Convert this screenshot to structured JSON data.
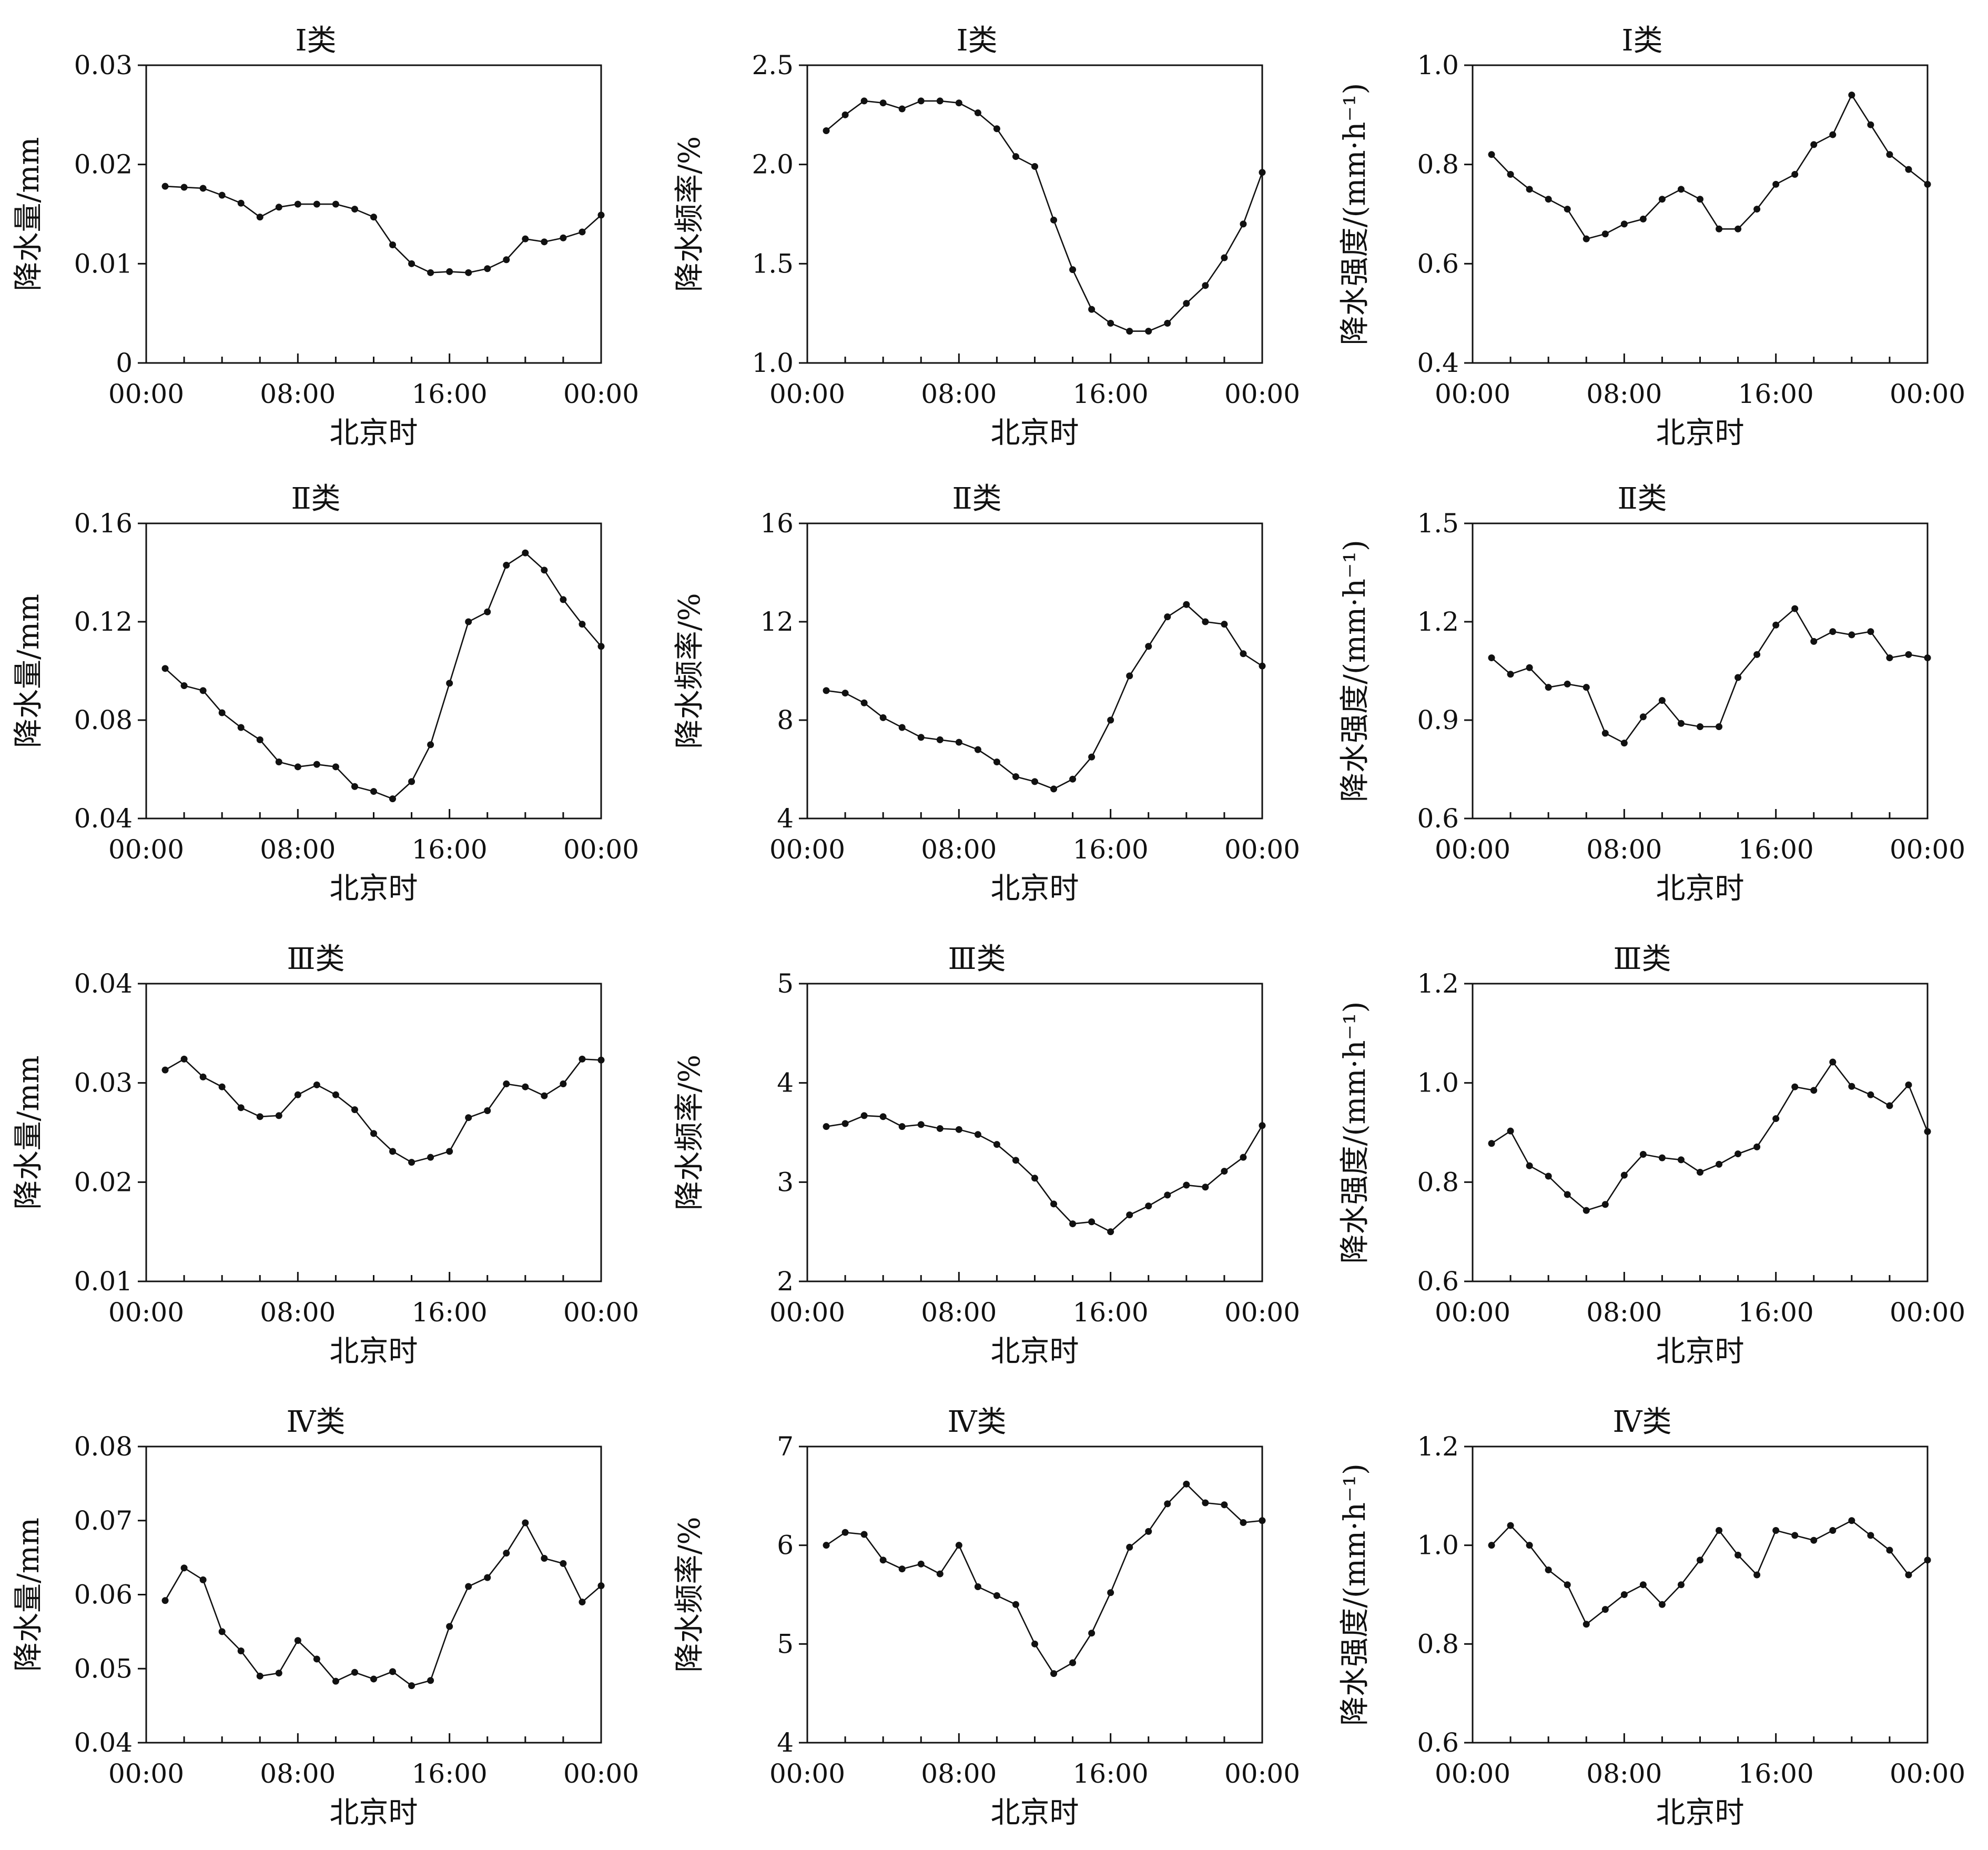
{
  "figure": {
    "x_tick_labels": [
      "00:00",
      "08:00",
      "16:00",
      "00:00"
    ],
    "xlabel": "北京时"
  },
  "chart_data": [
    {
      "type": "line",
      "title": "Ⅰ类",
      "ylabel": "降水量/mm",
      "ylim": [
        0,
        0.03
      ],
      "yticks": [
        "0",
        "0.01",
        "0.02",
        "0.03"
      ],
      "xlim": [
        0,
        24
      ],
      "x": [
        1,
        2,
        3,
        4,
        5,
        6,
        7,
        8,
        9,
        10,
        11,
        12,
        13,
        14,
        15,
        16,
        17,
        18,
        19,
        20,
        21,
        22,
        23,
        24
      ],
      "series": [
        {
          "values": [
            0.0178,
            0.0177,
            0.0176,
            0.0169,
            0.0161,
            0.0147,
            0.0157,
            0.016,
            0.016,
            0.016,
            0.0155,
            0.0147,
            0.0119,
            0.01,
            0.0091,
            0.0092,
            0.0091,
            0.0095,
            0.0104,
            0.0125,
            0.0122,
            0.0126,
            0.0132,
            0.0149
          ]
        }
      ]
    },
    {
      "type": "line",
      "title": "Ⅰ类",
      "ylabel": "降水频率/%",
      "ylim": [
        1.0,
        2.5
      ],
      "yticks": [
        "1.0",
        "1.5",
        "2.0",
        "2.5"
      ],
      "xlim": [
        0,
        24
      ],
      "x": [
        1,
        2,
        3,
        4,
        5,
        6,
        7,
        8,
        9,
        10,
        11,
        12,
        13,
        14,
        15,
        16,
        17,
        18,
        19,
        20,
        21,
        22,
        23,
        24
      ],
      "series": [
        {
          "values": [
            2.17,
            2.25,
            2.32,
            2.31,
            2.28,
            2.32,
            2.32,
            2.31,
            2.26,
            2.18,
            2.04,
            1.99,
            1.72,
            1.47,
            1.27,
            1.2,
            1.16,
            1.16,
            1.2,
            1.3,
            1.39,
            1.53,
            1.7,
            1.96
          ]
        }
      ]
    },
    {
      "type": "line",
      "title": "Ⅰ类",
      "ylabel": "降水强度/(mm·h⁻¹)",
      "ylim": [
        0.4,
        1.0
      ],
      "yticks": [
        "0.4",
        "0.6",
        "0.8",
        "1.0"
      ],
      "xlim": [
        0,
        24
      ],
      "x": [
        1,
        2,
        3,
        4,
        5,
        6,
        7,
        8,
        9,
        10,
        11,
        12,
        13,
        14,
        15,
        16,
        17,
        18,
        19,
        20,
        21,
        22,
        23,
        24
      ],
      "series": [
        {
          "values": [
            0.82,
            0.78,
            0.75,
            0.73,
            0.71,
            0.65,
            0.66,
            0.68,
            0.69,
            0.73,
            0.75,
            0.73,
            0.67,
            0.67,
            0.71,
            0.76,
            0.78,
            0.84,
            0.86,
            0.94,
            0.88,
            0.82,
            0.79,
            0.76
          ]
        }
      ]
    },
    {
      "type": "line",
      "title": "Ⅱ类",
      "ylabel": "降水量/mm",
      "ylim": [
        0.04,
        0.16
      ],
      "yticks": [
        "0.04",
        "0.08",
        "0.12",
        "0.16"
      ],
      "xlim": [
        0,
        24
      ],
      "x": [
        1,
        2,
        3,
        4,
        5,
        6,
        7,
        8,
        9,
        10,
        11,
        12,
        13,
        14,
        15,
        16,
        17,
        18,
        19,
        20,
        21,
        22,
        23,
        24
      ],
      "series": [
        {
          "values": [
            0.101,
            0.094,
            0.092,
            0.083,
            0.077,
            0.072,
            0.063,
            0.061,
            0.062,
            0.061,
            0.053,
            0.051,
            0.048,
            0.055,
            0.07,
            0.095,
            0.12,
            0.124,
            0.143,
            0.148,
            0.141,
            0.129,
            0.119,
            0.11
          ]
        }
      ]
    },
    {
      "type": "line",
      "title": "Ⅱ类",
      "ylabel": "降水频率/%",
      "ylim": [
        4,
        16
      ],
      "yticks": [
        "4",
        "8",
        "12",
        "16"
      ],
      "xlim": [
        0,
        24
      ],
      "x": [
        1,
        2,
        3,
        4,
        5,
        6,
        7,
        8,
        9,
        10,
        11,
        12,
        13,
        14,
        15,
        16,
        17,
        18,
        19,
        20,
        21,
        22,
        23,
        24
      ],
      "series": [
        {
          "values": [
            9.2,
            9.1,
            8.7,
            8.1,
            7.7,
            7.3,
            7.2,
            7.1,
            6.8,
            6.3,
            5.7,
            5.5,
            5.2,
            5.6,
            6.5,
            8.0,
            9.8,
            11.0,
            12.2,
            12.7,
            12.0,
            11.9,
            10.7,
            10.2
          ]
        }
      ]
    },
    {
      "type": "line",
      "title": "Ⅱ类",
      "ylabel": "降水强度/(mm·h⁻¹)",
      "ylim": [
        0.6,
        1.5
      ],
      "yticks": [
        "0.6",
        "0.9",
        "1.2",
        "1.5"
      ],
      "xlim": [
        0,
        24
      ],
      "x": [
        1,
        2,
        3,
        4,
        5,
        6,
        7,
        8,
        9,
        10,
        11,
        12,
        13,
        14,
        15,
        16,
        17,
        18,
        19,
        20,
        21,
        22,
        23,
        24
      ],
      "series": [
        {
          "values": [
            1.09,
            1.04,
            1.06,
            1.0,
            1.01,
            1.0,
            0.86,
            0.83,
            0.91,
            0.96,
            0.89,
            0.88,
            0.88,
            1.03,
            1.1,
            1.19,
            1.24,
            1.14,
            1.17,
            1.16,
            1.17,
            1.09,
            1.1,
            1.09
          ]
        }
      ]
    },
    {
      "type": "line",
      "title": "Ⅲ类",
      "ylabel": "降水量/mm",
      "ylim": [
        0.01,
        0.04
      ],
      "yticks": [
        "0.01",
        "0.02",
        "0.03",
        "0.04"
      ],
      "xlim": [
        0,
        24
      ],
      "x": [
        1,
        2,
        3,
        4,
        5,
        6,
        7,
        8,
        9,
        10,
        11,
        12,
        13,
        14,
        15,
        16,
        17,
        18,
        19,
        20,
        21,
        22,
        23,
        24
      ],
      "series": [
        {
          "values": [
            0.0313,
            0.0324,
            0.0306,
            0.0296,
            0.0275,
            0.0266,
            0.0267,
            0.0288,
            0.0298,
            0.0288,
            0.0273,
            0.0249,
            0.0231,
            0.022,
            0.0225,
            0.0231,
            0.0265,
            0.0272,
            0.0299,
            0.0296,
            0.0287,
            0.0299,
            0.0324,
            0.0323
          ]
        }
      ]
    },
    {
      "type": "line",
      "title": "Ⅲ类",
      "ylabel": "降水频率/%",
      "ylim": [
        2,
        5
      ],
      "yticks": [
        "2",
        "3",
        "4",
        "5"
      ],
      "xlim": [
        0,
        24
      ],
      "x": [
        1,
        2,
        3,
        4,
        5,
        6,
        7,
        8,
        9,
        10,
        11,
        12,
        13,
        14,
        15,
        16,
        17,
        18,
        19,
        20,
        21,
        22,
        23,
        24
      ],
      "series": [
        {
          "values": [
            3.56,
            3.59,
            3.67,
            3.66,
            3.56,
            3.58,
            3.54,
            3.53,
            3.48,
            3.38,
            3.22,
            3.04,
            2.78,
            2.58,
            2.6,
            2.5,
            2.67,
            2.76,
            2.87,
            2.97,
            2.95,
            3.11,
            3.25,
            3.57
          ]
        }
      ]
    },
    {
      "type": "line",
      "title": "Ⅲ类",
      "ylabel": "降水强度/(mm·h⁻¹)",
      "ylim": [
        0.6,
        1.2
      ],
      "yticks": [
        "0.6",
        "0.8",
        "1.0",
        "1.2"
      ],
      "xlim": [
        0,
        24
      ],
      "x": [
        1,
        2,
        3,
        4,
        5,
        6,
        7,
        8,
        9,
        10,
        11,
        12,
        13,
        14,
        15,
        16,
        17,
        18,
        19,
        20,
        21,
        22,
        23,
        24
      ],
      "series": [
        {
          "values": [
            0.878,
            0.903,
            0.833,
            0.812,
            0.775,
            0.743,
            0.755,
            0.814,
            0.856,
            0.849,
            0.845,
            0.82,
            0.836,
            0.857,
            0.871,
            0.928,
            0.992,
            0.985,
            1.042,
            0.993,
            0.976,
            0.954,
            0.996,
            0.902
          ]
        }
      ]
    },
    {
      "type": "line",
      "title": "Ⅳ类",
      "ylabel": "降水量/mm",
      "ylim": [
        0.04,
        0.08
      ],
      "yticks": [
        "0.04",
        "0.05",
        "0.06",
        "0.07",
        "0.08"
      ],
      "xlim": [
        0,
        24
      ],
      "x": [
        1,
        2,
        3,
        4,
        5,
        6,
        7,
        8,
        9,
        10,
        11,
        12,
        13,
        14,
        15,
        16,
        17,
        18,
        19,
        20,
        21,
        22,
        23,
        24
      ],
      "series": [
        {
          "values": [
            0.0592,
            0.0636,
            0.062,
            0.055,
            0.0524,
            0.049,
            0.0494,
            0.0538,
            0.0513,
            0.0483,
            0.0495,
            0.0486,
            0.0496,
            0.0477,
            0.0484,
            0.0557,
            0.0611,
            0.0623,
            0.0656,
            0.0697,
            0.0649,
            0.0642,
            0.059,
            0.0612
          ]
        }
      ]
    },
    {
      "type": "line",
      "title": "Ⅳ类",
      "ylabel": "降水频率/%",
      "ylim": [
        4,
        7
      ],
      "yticks": [
        "4",
        "5",
        "6",
        "7"
      ],
      "xlim": [
        0,
        24
      ],
      "x": [
        1,
        2,
        3,
        4,
        5,
        6,
        7,
        8,
        9,
        10,
        11,
        12,
        13,
        14,
        15,
        16,
        17,
        18,
        19,
        20,
        21,
        22,
        23,
        24
      ],
      "series": [
        {
          "values": [
            6.0,
            6.13,
            6.11,
            5.85,
            5.76,
            5.81,
            5.71,
            6.0,
            5.58,
            5.49,
            5.4,
            5.0,
            4.7,
            4.81,
            5.11,
            5.52,
            5.98,
            6.14,
            6.42,
            6.62,
            6.43,
            6.41,
            6.23,
            6.25
          ]
        }
      ]
    },
    {
      "type": "line",
      "title": "Ⅳ类",
      "ylabel": "降水强度/(mm·h⁻¹)",
      "ylim": [
        0.6,
        1.2
      ],
      "yticks": [
        "0.6",
        "0.8",
        "1.0",
        "1.2"
      ],
      "xlim": [
        0,
        24
      ],
      "x": [
        1,
        2,
        3,
        4,
        5,
        6,
        7,
        8,
        9,
        10,
        11,
        12,
        13,
        14,
        15,
        16,
        17,
        18,
        19,
        20,
        21,
        22,
        23,
        24
      ],
      "series": [
        {
          "values": [
            1.0,
            1.04,
            1.0,
            0.95,
            0.92,
            0.84,
            0.87,
            0.9,
            0.92,
            0.88,
            0.92,
            0.97,
            1.03,
            0.98,
            0.94,
            1.03,
            1.02,
            1.01,
            1.03,
            1.05,
            1.02,
            0.99,
            0.94,
            0.97
          ]
        }
      ]
    }
  ]
}
